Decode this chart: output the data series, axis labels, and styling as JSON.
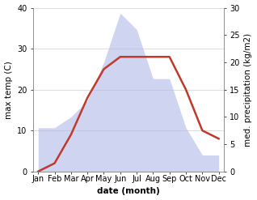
{
  "months": [
    "Jan",
    "Feb",
    "Mar",
    "Apr",
    "May",
    "Jun",
    "Jul",
    "Aug",
    "Sep",
    "Oct",
    "Nov",
    "Dec"
  ],
  "temp_max": [
    0,
    2,
    9,
    18,
    25,
    28,
    28,
    28,
    28,
    20,
    10,
    8
  ],
  "precipitation": [
    8,
    8,
    10,
    13,
    20,
    29,
    26,
    17,
    17,
    8,
    3,
    3
  ],
  "temp_ylim": [
    0,
    40
  ],
  "precip_ylim": [
    0,
    30
  ],
  "fill_color": "#b0b8e8",
  "fill_alpha": 0.6,
  "line_color": "#c0392b",
  "line_width": 1.8,
  "xlabel": "date (month)",
  "ylabel_left": "max temp (C)",
  "ylabel_right": "med. precipitation (kg/m2)",
  "grid_color": "#d0d0d0",
  "label_fontsize": 7.5,
  "tick_fontsize": 7
}
